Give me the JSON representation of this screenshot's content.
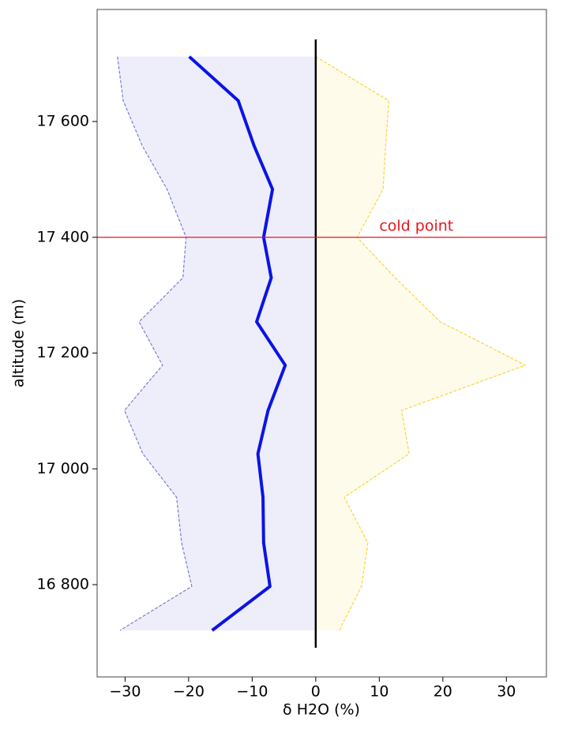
{
  "chart_data": {
    "type": "line",
    "xlabel": "δ H2O (%)",
    "ylabel": "altitude (m)",
    "y": [
      17712,
      17636,
      17558,
      17483,
      17400,
      17330,
      17254,
      17179,
      17101,
      17026,
      16951,
      16872,
      16797,
      16721
    ],
    "series": [
      {
        "color": "#7b7bd6",
        "fill": "#eeeefa",
        "dashed": true,
        "values": [
          -31.2,
          -30.3,
          -27.3,
          -23.4,
          -20.4,
          -20.9,
          -27.8,
          -24.1,
          -30.1,
          -27.2,
          -21.9,
          -21.1,
          -19.5,
          -30.8
        ]
      },
      {
        "color": "#f5d742",
        "fill": "#fffbea",
        "dashed": true,
        "values": [
          0,
          11.5,
          11.0,
          10.6,
          6.5,
          12.5,
          19.6,
          33.0,
          13.5,
          14.7,
          4.5,
          8.2,
          7.2,
          3.7
        ]
      },
      {
        "color": "#0a14e6",
        "dashed": false,
        "values": [
          -19.9,
          -12.2,
          -9.7,
          -6.8,
          -8.2,
          -7.0,
          -9.3,
          -4.8,
          -7.5,
          -9.1,
          -8.3,
          -8.2,
          -7.2,
          -16.3
        ]
      }
    ],
    "vline": {
      "value": 0,
      "color": "#000000"
    },
    "hline": {
      "value": 17400,
      "color": "#e8141e",
      "label": "cold point"
    },
    "xlim": [
      -34.4,
      36.3
    ],
    "ylim": [
      16640.6,
      17793.5
    ],
    "xticks": [
      {
        "value": -30,
        "label": "−30"
      },
      {
        "value": -20,
        "label": "−20"
      },
      {
        "value": -10,
        "label": "−10"
      },
      0,
      10,
      20,
      30
    ],
    "yticks": [
      {
        "value": 16800,
        "label": "16 800"
      },
      {
        "value": 17000,
        "label": "17 000"
      },
      {
        "value": 17200,
        "label": "17 200"
      },
      {
        "value": 17400,
        "label": "17 400"
      },
      {
        "value": 17600,
        "label": "17 600"
      }
    ]
  }
}
